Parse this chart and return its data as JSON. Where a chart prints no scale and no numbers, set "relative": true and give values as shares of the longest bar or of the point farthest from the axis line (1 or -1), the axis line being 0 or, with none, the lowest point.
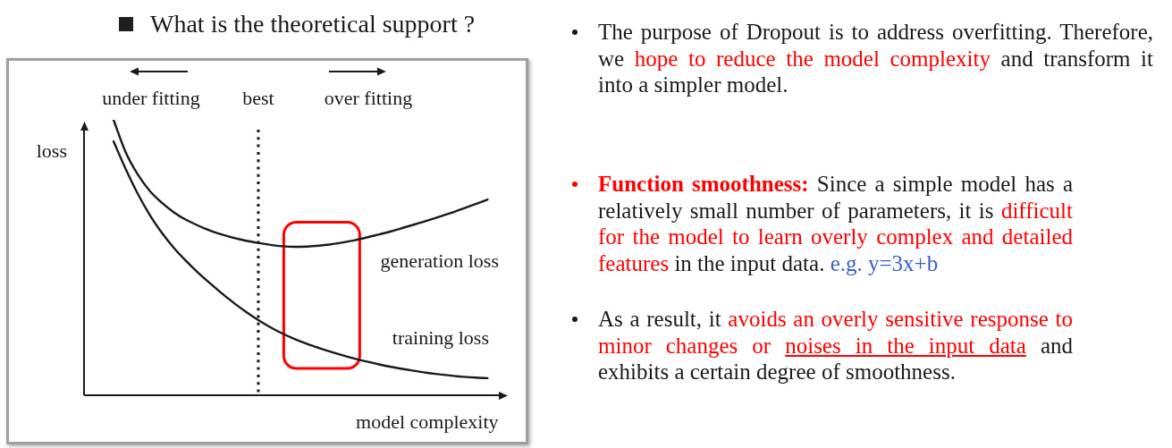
{
  "chart_data": {
    "type": "line",
    "title": "What is the theoretical support ?",
    "xlabel": "model complexity",
    "ylabel": "loss",
    "relative": true,
    "categories": [
      null,
      null,
      null,
      null,
      null,
      null,
      null,
      null,
      null,
      null,
      null,
      null,
      null,
      null,
      null,
      null,
      null,
      null,
      null,
      null,
      null,
      null,
      null,
      null,
      null,
      null,
      null,
      null,
      null,
      null,
      null,
      null
    ],
    "series": [
      {
        "name": "generation loss",
        "color": "#1a1a1a",
        "values": [
          1.0,
          0.883,
          0.802,
          0.742,
          0.699,
          0.664,
          0.637,
          0.616,
          0.598,
          0.583,
          0.571,
          0.561,
          0.553,
          0.546,
          0.541,
          0.539,
          0.54,
          0.543,
          0.548,
          0.555,
          0.563,
          0.573,
          0.584,
          0.595,
          0.608,
          0.621,
          0.634,
          0.648,
          0.663,
          0.678,
          0.694,
          0.711
        ]
      },
      {
        "name": "training loss",
        "color": "#1a1a1a",
        "values": [
          0.922,
          0.822,
          0.732,
          0.655,
          0.59,
          0.535,
          0.488,
          0.445,
          0.406,
          0.369,
          0.334,
          0.302,
          0.273,
          0.247,
          0.224,
          0.204,
          0.187,
          0.172,
          0.158,
          0.145,
          0.133,
          0.122,
          0.112,
          0.103,
          0.095,
          0.088,
          0.081,
          0.076,
          0.071,
          0.067,
          0.064,
          0.062
        ]
      }
    ],
    "annotations": [
      "under fitting",
      "best",
      "over fitting",
      "The purpose of Dropout is to address overfitting. Therefore, we hope to reduce the model complexity and transform it into a simpler model.",
      "Function smoothness: Since a simple model has a relatively small number of parameters, it is difficult for the model to learn overly complex and detailed features in the input data. e.g. y=3x+b",
      "As a result, it avoids an overly sensitive response to minor changes or noises in the input data and exhibits a certain degree of smoothness."
    ]
  }
}
